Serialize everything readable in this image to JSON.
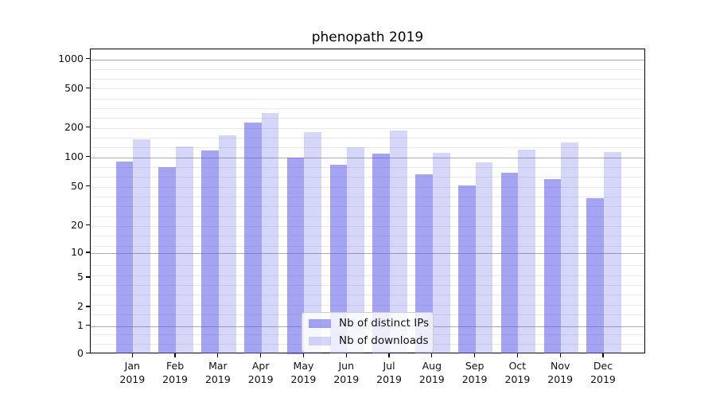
{
  "title": "phenopath 2019",
  "legend": {
    "items": [
      {
        "label": "Nb of distinct IPs",
        "color_key": "ips_fill"
      },
      {
        "label": "Nb of downloads",
        "color_key": "downloads_fill"
      }
    ]
  },
  "y_axis": {
    "tick_labels": [
      "1000",
      "500",
      "200",
      "100",
      "50",
      "20",
      "10",
      "5",
      "2",
      "1",
      "0"
    ],
    "tick_values": [
      1000,
      500,
      200,
      100,
      50,
      20,
      10,
      5,
      2,
      1,
      0
    ]
  },
  "x_axis": {
    "months": [
      {
        "month": "Jan",
        "year": "2019"
      },
      {
        "month": "Feb",
        "year": "2019"
      },
      {
        "month": "Mar",
        "year": "2019"
      },
      {
        "month": "Apr",
        "year": "2019"
      },
      {
        "month": "May",
        "year": "2019"
      },
      {
        "month": "Jun",
        "year": "2019"
      },
      {
        "month": "Jul",
        "year": "2019"
      },
      {
        "month": "Aug",
        "year": "2019"
      },
      {
        "month": "Sep",
        "year": "2019"
      },
      {
        "month": "Oct",
        "year": "2019"
      },
      {
        "month": "Nov",
        "year": "2019"
      },
      {
        "month": "Dec",
        "year": "2019"
      }
    ]
  },
  "colors": {
    "ips_fill": "rgba(90,90,232,0.55)",
    "downloads_fill": "rgba(90,90,232,0.25)",
    "grid_major": "#ababab",
    "grid_minor": "#e9e9e9",
    "axis": "#000000",
    "text": "#111111",
    "legend_border": "#cccccc",
    "legend_bg": "rgba(255,255,255,0.8)"
  },
  "chart_data": {
    "type": "bar",
    "title": "phenopath 2019",
    "categories": [
      "Jan 2019",
      "Feb 2019",
      "Mar 2019",
      "Apr 2019",
      "May 2019",
      "Jun 2019",
      "Jul 2019",
      "Aug 2019",
      "Sep 2019",
      "Oct 2019",
      "Nov 2019",
      "Dec 2019"
    ],
    "series": [
      {
        "name": "Nb of distinct IPs",
        "values": [
          90,
          79,
          117,
          224,
          100,
          84,
          108,
          67,
          51,
          69,
          60,
          38
        ]
      },
      {
        "name": "Nb of downloads",
        "values": [
          152,
          128,
          166,
          285,
          182,
          126,
          188,
          110,
          89,
          119,
          141,
          114
        ]
      }
    ],
    "xlabel": "",
    "ylabel": "",
    "yscale": "symlog",
    "y_ticks": [
      0,
      1,
      2,
      5,
      10,
      20,
      50,
      100,
      200,
      500,
      1000
    ],
    "ylim": [
      0,
      1400
    ],
    "grid": "horizontal-major-and-minor",
    "legend_position": "lower center"
  }
}
